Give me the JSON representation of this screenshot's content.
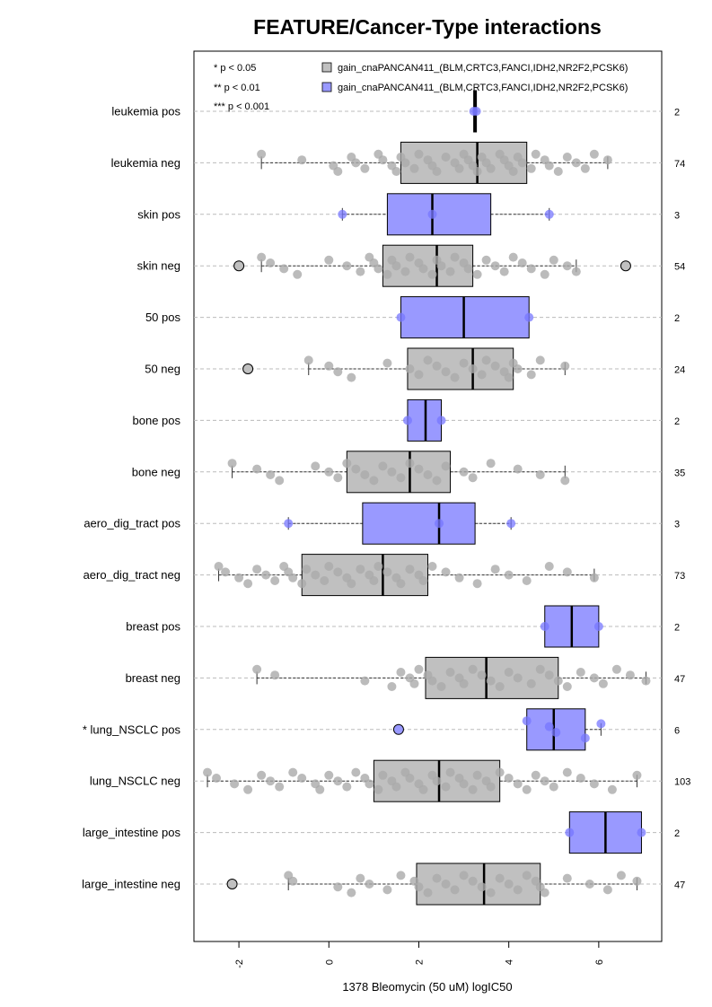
{
  "chart_data": {
    "type": "boxplot",
    "title": "FEATURE/Cancer-Type interactions",
    "xlabel": "1378 Bleomycin (50 uM) logIC50",
    "xlim": [
      -3.0,
      7.4
    ],
    "xticks": [
      -2,
      0,
      2,
      4,
      6
    ],
    "significance_legend": [
      "* p < 0.05",
      "** p < 0.01",
      "*** p < 0.001"
    ],
    "legend": [
      {
        "label": "gain_cnaPANCAN411_(BLM,CRTC3,FANCI,IDH2,NR2F2,PCSK6)",
        "color": "#c0c0c0"
      },
      {
        "label": "gain_cnaPANCAN411_(BLM,CRTC3,FANCI,IDH2,NR2F2,PCSK6)",
        "color": "#9999ff"
      }
    ],
    "colors": {
      "neg_box": "#c0c0c0",
      "pos_box": "#9999ff",
      "neg_point": "#aaaaaa",
      "pos_point": "#7777ff"
    },
    "groups": [
      {
        "label": "leukemia pos",
        "n": "2",
        "pos": true,
        "q1": 3.22,
        "median": 3.25,
        "q3": 3.28,
        "wlo": 3.22,
        "whi": 3.28,
        "outliers": [],
        "points": [
          3.22,
          3.28
        ]
      },
      {
        "label": "leukemia neg",
        "n": "74",
        "pos": false,
        "q1": 1.6,
        "median": 3.3,
        "q3": 4.4,
        "wlo": -1.5,
        "whi": 6.2,
        "outliers": [],
        "points": [
          -1.5,
          -0.6,
          0.1,
          0.2,
          0.5,
          0.6,
          0.8,
          1.1,
          1.2,
          1.4,
          1.5,
          1.6,
          1.7,
          1.9,
          2.0,
          2.2,
          2.3,
          2.4,
          2.6,
          2.8,
          2.9,
          3.0,
          3.1,
          3.2,
          3.3,
          3.4,
          3.5,
          3.6,
          3.8,
          3.9,
          4.0,
          4.1,
          4.2,
          4.3,
          4.5,
          4.6,
          4.8,
          4.9,
          5.1,
          5.3,
          5.5,
          5.7,
          5.9,
          6.2
        ]
      },
      {
        "label": "skin pos",
        "n": "3",
        "pos": true,
        "q1": 1.3,
        "median": 2.3,
        "q3": 3.6,
        "wlo": 0.3,
        "whi": 4.9,
        "outliers": [],
        "points": [
          0.3,
          2.3,
          4.9
        ]
      },
      {
        "label": "skin neg",
        "n": "54",
        "pos": false,
        "q1": 1.2,
        "median": 2.4,
        "q3": 3.2,
        "wlo": -1.5,
        "whi": 5.5,
        "outliers": [
          -2.0,
          6.6
        ],
        "points": [
          -1.5,
          -1.3,
          -1.0,
          -0.7,
          0.0,
          0.4,
          0.7,
          0.9,
          1.0,
          1.1,
          1.3,
          1.4,
          1.5,
          1.7,
          1.8,
          2.0,
          2.1,
          2.3,
          2.4,
          2.5,
          2.7,
          2.8,
          3.0,
          3.1,
          3.3,
          3.5,
          3.7,
          3.9,
          4.1,
          4.3,
          4.5,
          4.8,
          5.0,
          5.3,
          5.5
        ]
      },
      {
        "label": "50 pos",
        "n": "2",
        "pos": true,
        "q1": 1.6,
        "median": 3.0,
        "q3": 4.45,
        "wlo": 1.6,
        "whi": 4.45,
        "outliers": [],
        "points": [
          1.6,
          4.45
        ]
      },
      {
        "label": "50 neg",
        "n": "24",
        "pos": false,
        "q1": 1.75,
        "median": 3.2,
        "q3": 4.1,
        "wlo": -0.45,
        "whi": 5.25,
        "outliers": [
          -1.8
        ],
        "points": [
          -0.45,
          0.0,
          0.2,
          0.5,
          1.3,
          1.8,
          2.0,
          2.2,
          2.4,
          2.6,
          2.8,
          3.0,
          3.2,
          3.4,
          3.5,
          3.7,
          3.9,
          4.0,
          4.1,
          4.2,
          4.5,
          4.7,
          5.25
        ]
      },
      {
        "label": "bone pos",
        "n": "2",
        "pos": true,
        "q1": 1.75,
        "median": 2.15,
        "q3": 2.5,
        "wlo": 1.75,
        "whi": 2.5,
        "outliers": [],
        "points": [
          1.75,
          2.5
        ]
      },
      {
        "label": "bone neg",
        "n": "35",
        "pos": false,
        "q1": 0.4,
        "median": 1.8,
        "q3": 2.7,
        "wlo": -2.15,
        "whi": 5.25,
        "outliers": [],
        "points": [
          -2.15,
          -1.6,
          -1.3,
          -1.1,
          -0.3,
          0.0,
          0.2,
          0.4,
          0.6,
          0.8,
          1.0,
          1.2,
          1.4,
          1.6,
          1.8,
          2.0,
          2.2,
          2.4,
          2.6,
          3.0,
          3.2,
          3.6,
          4.2,
          4.7,
          5.25
        ]
      },
      {
        "label": "aero_dig_tract pos",
        "n": "3",
        "pos": true,
        "q1": 0.75,
        "median": 2.45,
        "q3": 3.25,
        "wlo": -0.9,
        "whi": 4.05,
        "outliers": [],
        "points": [
          -0.9,
          2.45,
          4.05
        ]
      },
      {
        "label": "aero_dig_tract neg",
        "n": "73",
        "pos": false,
        "q1": -0.6,
        "median": 1.2,
        "q3": 2.2,
        "wlo": -2.45,
        "whi": 5.9,
        "outliers": [],
        "points": [
          -2.45,
          -2.3,
          -2.0,
          -1.8,
          -1.6,
          -1.4,
          -1.2,
          -1.0,
          -0.9,
          -0.8,
          -0.6,
          -0.5,
          -0.3,
          -0.1,
          0.0,
          0.2,
          0.4,
          0.5,
          0.7,
          0.9,
          1.0,
          1.1,
          1.3,
          1.5,
          1.6,
          1.8,
          2.0,
          2.1,
          2.3,
          2.6,
          2.9,
          3.3,
          3.7,
          4.0,
          4.4,
          4.9,
          5.3,
          5.9
        ]
      },
      {
        "label": "breast pos",
        "n": "2",
        "pos": true,
        "q1": 4.8,
        "median": 5.4,
        "q3": 6.0,
        "wlo": 4.8,
        "whi": 6.0,
        "outliers": [],
        "points": [
          4.8,
          6.0
        ]
      },
      {
        "label": "breast neg",
        "n": "47",
        "pos": false,
        "q1": 2.15,
        "median": 3.5,
        "q3": 5.1,
        "wlo": -1.6,
        "whi": 7.05,
        "outliers": [],
        "points": [
          -1.6,
          -1.2,
          0.8,
          1.4,
          1.6,
          1.8,
          1.9,
          2.0,
          2.2,
          2.3,
          2.5,
          2.7,
          2.9,
          3.0,
          3.2,
          3.4,
          3.6,
          3.8,
          4.0,
          4.2,
          4.5,
          4.7,
          4.9,
          5.1,
          5.3,
          5.6,
          5.9,
          6.1,
          6.4,
          6.7,
          7.05
        ]
      },
      {
        "label": "* lung_NSCLC pos",
        "n": "6",
        "pos": true,
        "q1": 4.4,
        "median": 5.0,
        "q3": 5.7,
        "wlo": 4.4,
        "whi": 6.05,
        "outliers": [
          1.55
        ],
        "points": [
          4.4,
          4.9,
          5.05,
          5.7,
          6.05
        ]
      },
      {
        "label": "lung_NSCLC neg",
        "n": "103",
        "pos": false,
        "q1": 1.0,
        "median": 2.45,
        "q3": 3.8,
        "wlo": -2.7,
        "whi": 6.85,
        "outliers": [],
        "points": [
          -2.7,
          -2.5,
          -2.1,
          -1.8,
          -1.5,
          -1.3,
          -1.1,
          -0.8,
          -0.6,
          -0.3,
          -0.2,
          0.0,
          0.2,
          0.4,
          0.6,
          0.8,
          0.9,
          1.1,
          1.2,
          1.4,
          1.5,
          1.7,
          1.8,
          2.0,
          2.1,
          2.3,
          2.4,
          2.6,
          2.7,
          2.9,
          3.0,
          3.2,
          3.3,
          3.5,
          3.6,
          3.8,
          4.0,
          4.2,
          4.4,
          4.6,
          4.8,
          5.0,
          5.3,
          5.6,
          5.9,
          6.3,
          6.85
        ]
      },
      {
        "label": "large_intestine pos",
        "n": "2",
        "pos": true,
        "q1": 5.35,
        "median": 6.15,
        "q3": 6.95,
        "wlo": 5.35,
        "whi": 6.95,
        "outliers": [],
        "points": [
          5.35,
          6.95
        ]
      },
      {
        "label": "large_intestine neg",
        "n": "47",
        "pos": false,
        "q1": 1.95,
        "median": 3.45,
        "q3": 4.7,
        "wlo": -0.9,
        "whi": 6.85,
        "outliers": [
          -2.15
        ],
        "points": [
          -0.9,
          -0.8,
          0.2,
          0.5,
          0.7,
          0.9,
          1.3,
          1.6,
          1.9,
          2.0,
          2.2,
          2.4,
          2.6,
          2.8,
          3.0,
          3.2,
          3.4,
          3.6,
          3.8,
          4.0,
          4.2,
          4.4,
          4.6,
          4.7,
          4.8,
          5.3,
          5.8,
          6.2,
          6.5,
          6.85
        ]
      }
    ]
  }
}
